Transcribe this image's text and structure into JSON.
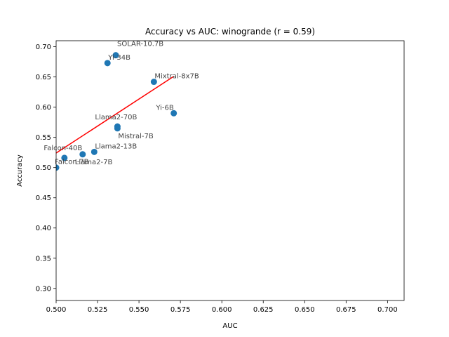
{
  "chart_data": {
    "type": "scatter",
    "title": "Accuracy vs AUC: winogrande (r = 0.59)",
    "xlabel": "AUC",
    "ylabel": "Accuracy",
    "xlim": [
      0.5,
      0.71
    ],
    "ylim": [
      0.28,
      0.71
    ],
    "xticks": [
      "0.500",
      "0.525",
      "0.550",
      "0.575",
      "0.600",
      "0.625",
      "0.650",
      "0.675",
      "0.700"
    ],
    "yticks": [
      "0.30",
      "0.35",
      "0.40",
      "0.45",
      "0.50",
      "0.55",
      "0.60",
      "0.65",
      "0.70"
    ],
    "grid": false,
    "point_color": "#1f77b4",
    "fit_color": "#ff0000",
    "points": [
      {
        "label": "SOLAR-10.7B",
        "x": 0.536,
        "y": 0.686
      },
      {
        "label": "Yi-34B",
        "x": 0.531,
        "y": 0.673
      },
      {
        "label": "Mixtral-8x7B",
        "x": 0.559,
        "y": 0.642
      },
      {
        "label": "Yi-6B",
        "x": 0.571,
        "y": 0.59
      },
      {
        "label": "Llama2-70B",
        "x": 0.537,
        "y": 0.568
      },
      {
        "label": "Mistral-7B",
        "x": 0.537,
        "y": 0.565
      },
      {
        "label": "Llama2-13B",
        "x": 0.523,
        "y": 0.526
      },
      {
        "label": "Falcon-40B",
        "x": 0.505,
        "y": 0.516
      },
      {
        "label": "Llama2-7B",
        "x": 0.516,
        "y": 0.522
      },
      {
        "label": "Falcon-7B",
        "x": 0.5,
        "y": 0.5
      }
    ],
    "fit_line": {
      "x": [
        0.5,
        0.571
      ],
      "y": [
        0.524,
        0.651
      ]
    }
  }
}
